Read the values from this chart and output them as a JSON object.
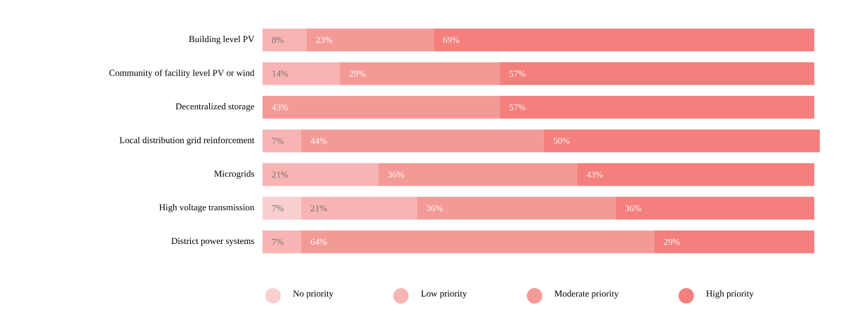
{
  "chart_data": {
    "type": "bar",
    "orientation": "horizontal",
    "stacked": true,
    "categories": [
      "Building level PV",
      "Community of facility level PV or wind",
      "Decentralized storage",
      "Local distribution grid reinforcement",
      "Microgrids",
      "High voltage transmission",
      "District power systems"
    ],
    "xlim": [
      0,
      101
    ],
    "tick_labels": "y",
    "legend": "bottom",
    "series": [
      {
        "name": "No priority",
        "color": "#f9cfcf",
        "values": [
          null,
          null,
          null,
          null,
          null,
          7,
          null
        ],
        "value_labels": [
          null,
          null,
          null,
          null,
          null,
          "7%",
          null
        ]
      },
      {
        "name": "Low priority",
        "color": "#f8b4b3",
        "values": [
          8,
          14,
          null,
          7,
          21,
          21,
          7
        ],
        "value_labels": [
          "8%",
          "14%",
          null,
          "7%",
          "21%",
          "21%",
          "7%"
        ]
      },
      {
        "name": "Moderate priority",
        "color": "#f49a96",
        "values": [
          23,
          29,
          43,
          44,
          36,
          36,
          64
        ],
        "value_labels": [
          "23%",
          "29%",
          "43%",
          "44%",
          "36%",
          "36%",
          "64%"
        ]
      },
      {
        "name": "High priority",
        "color": "#f47f7c",
        "values": [
          69,
          57,
          57,
          50,
          43,
          36,
          29
        ],
        "value_labels": [
          "69%",
          "57%",
          "57%",
          "50%",
          "43%",
          "36%",
          "29%"
        ]
      }
    ]
  }
}
